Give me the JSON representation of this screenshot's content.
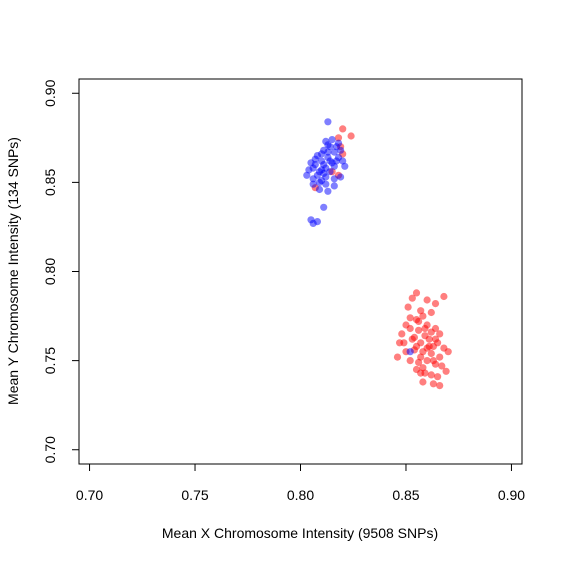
{
  "chart_data": {
    "type": "scatter",
    "title": "",
    "xlabel": "Mean X Chromosome Intensity (9508 SNPs)",
    "ylabel": "Mean Y Chromosome Intensity (134 SNPs)",
    "xlim": [
      0.695,
      0.905
    ],
    "ylim": [
      0.692,
      0.908
    ],
    "x_ticks": [
      0.7,
      0.75,
      0.8,
      0.85,
      0.9
    ],
    "x_tick_labels": [
      "0.70",
      "0.75",
      "0.80",
      "0.85",
      "0.90"
    ],
    "y_ticks": [
      0.7,
      0.75,
      0.8,
      0.85,
      0.9
    ],
    "y_tick_labels": [
      "0.70",
      "0.75",
      "0.80",
      "0.85",
      "0.90"
    ],
    "grid": false,
    "legend": "none",
    "colors": {
      "cluster_a": "#0000ff",
      "cluster_b": "#ff0000"
    },
    "series": [
      {
        "color": "#ff0000",
        "points": [
          [
            0.807,
            0.847
          ],
          [
            0.818,
            0.854
          ],
          [
            0.82,
            0.866
          ],
          [
            0.819,
            0.87
          ],
          [
            0.824,
            0.876
          ],
          [
            0.82,
            0.88
          ],
          [
            0.818,
            0.875
          ],
          [
            0.815,
            0.856
          ],
          [
            0.853,
            0.785
          ],
          [
            0.855,
            0.788
          ],
          [
            0.86,
            0.784
          ],
          [
            0.864,
            0.782
          ],
          [
            0.868,
            0.786
          ],
          [
            0.851,
            0.78
          ],
          [
            0.857,
            0.778
          ],
          [
            0.862,
            0.777
          ],
          [
            0.85,
            0.77
          ],
          [
            0.848,
            0.765
          ],
          [
            0.852,
            0.768
          ],
          [
            0.856,
            0.772
          ],
          [
            0.86,
            0.77
          ],
          [
            0.864,
            0.768
          ],
          [
            0.866,
            0.765
          ],
          [
            0.849,
            0.76
          ],
          [
            0.853,
            0.762
          ],
          [
            0.857,
            0.76
          ],
          [
            0.861,
            0.762
          ],
          [
            0.865,
            0.76
          ],
          [
            0.868,
            0.757
          ],
          [
            0.85,
            0.755
          ],
          [
            0.854,
            0.756
          ],
          [
            0.858,
            0.755
          ],
          [
            0.862,
            0.754
          ],
          [
            0.866,
            0.752
          ],
          [
            0.87,
            0.755
          ],
          [
            0.852,
            0.75
          ],
          [
            0.856,
            0.749
          ],
          [
            0.86,
            0.75
          ],
          [
            0.864,
            0.748
          ],
          [
            0.867,
            0.747
          ],
          [
            0.855,
            0.745
          ],
          [
            0.859,
            0.743
          ],
          [
            0.862,
            0.742
          ],
          [
            0.865,
            0.741
          ],
          [
            0.858,
            0.738
          ],
          [
            0.863,
            0.737
          ],
          [
            0.866,
            0.736
          ],
          [
            0.855,
            0.758
          ],
          [
            0.859,
            0.764
          ],
          [
            0.863,
            0.758
          ],
          [
            0.857,
            0.752
          ],
          [
            0.861,
            0.758
          ],
          [
            0.854,
            0.763
          ],
          [
            0.862,
            0.766
          ],
          [
            0.858,
            0.746
          ],
          [
            0.856,
            0.767
          ],
          [
            0.864,
            0.762
          ],
          [
            0.852,
            0.774
          ],
          [
            0.858,
            0.775
          ],
          [
            0.847,
            0.76
          ],
          [
            0.869,
            0.744
          ],
          [
            0.846,
            0.752
          ],
          [
            0.86,
            0.757
          ],
          [
            0.857,
            0.743
          ],
          [
            0.863,
            0.75
          ],
          [
            0.855,
            0.773
          ],
          [
            0.859,
            0.768
          ]
        ]
      },
      {
        "color": "#0000ff",
        "points": [
          [
            0.813,
            0.884
          ],
          [
            0.805,
            0.829
          ],
          [
            0.806,
            0.827
          ],
          [
            0.808,
            0.828
          ],
          [
            0.811,
            0.836
          ],
          [
            0.809,
            0.846
          ],
          [
            0.813,
            0.845
          ],
          [
            0.816,
            0.848
          ],
          [
            0.803,
            0.854
          ],
          [
            0.804,
            0.857
          ],
          [
            0.806,
            0.852
          ],
          [
            0.807,
            0.86
          ],
          [
            0.809,
            0.856
          ],
          [
            0.81,
            0.862
          ],
          [
            0.812,
            0.858
          ],
          [
            0.813,
            0.864
          ],
          [
            0.815,
            0.861
          ],
          [
            0.816,
            0.867
          ],
          [
            0.817,
            0.87
          ],
          [
            0.818,
            0.872
          ],
          [
            0.811,
            0.868
          ],
          [
            0.814,
            0.87
          ],
          [
            0.808,
            0.865
          ],
          [
            0.812,
            0.873
          ],
          [
            0.815,
            0.874
          ],
          [
            0.819,
            0.868
          ],
          [
            0.82,
            0.862
          ],
          [
            0.81,
            0.851
          ],
          [
            0.812,
            0.853
          ],
          [
            0.806,
            0.858
          ],
          [
            0.809,
            0.85
          ],
          [
            0.814,
            0.856
          ],
          [
            0.816,
            0.859
          ],
          [
            0.818,
            0.864
          ],
          [
            0.807,
            0.863
          ],
          [
            0.813,
            0.867
          ],
          [
            0.81,
            0.857
          ],
          [
            0.811,
            0.86
          ],
          [
            0.814,
            0.862
          ],
          [
            0.817,
            0.862
          ],
          [
            0.808,
            0.854
          ],
          [
            0.81,
            0.866
          ],
          [
            0.813,
            0.871
          ],
          [
            0.812,
            0.849
          ],
          [
            0.806,
            0.849
          ],
          [
            0.821,
            0.859
          ],
          [
            0.819,
            0.853
          ],
          [
            0.805,
            0.861
          ],
          [
            0.816,
            0.852
          ],
          [
            0.811,
            0.855
          ],
          [
            0.852,
            0.755
          ]
        ]
      }
    ]
  }
}
